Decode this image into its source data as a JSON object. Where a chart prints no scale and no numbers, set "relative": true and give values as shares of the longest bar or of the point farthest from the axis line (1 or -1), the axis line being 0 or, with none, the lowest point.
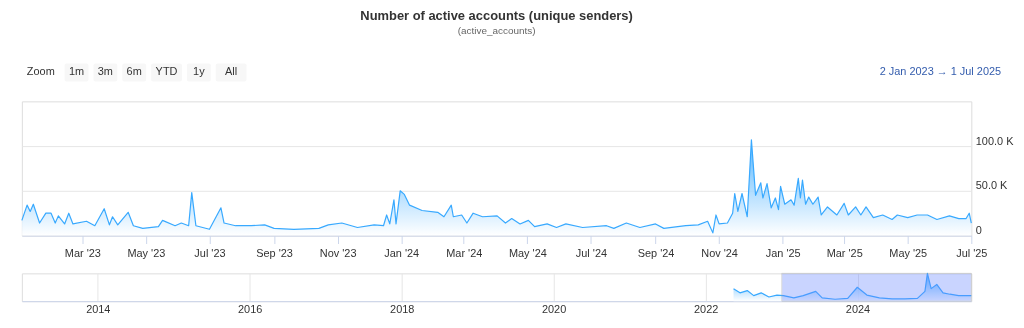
{
  "chart_data": [
    {
      "type": "area",
      "title": "Number of active accounts (unique senders)",
      "subtitle": "(active_accounts)",
      "annotations": [
        "Zoom",
        "1m",
        "3m",
        "6m",
        "YTD",
        "1y",
        "All",
        "2 Jan 2023 → 1 Jul 2025"
      ],
      "x": [
        "2023-01-02",
        "2023-01-07",
        "2023-01-10",
        "2023-01-13",
        "2023-01-19",
        "2023-01-25",
        "2023-01-30",
        "2023-02-03",
        "2023-02-06",
        "2023-02-12",
        "2023-02-16",
        "2023-02-20",
        "2023-03-05",
        "2023-03-13",
        "2023-03-22",
        "2023-03-27",
        "2023-03-30",
        "2023-04-04",
        "2023-04-14",
        "2023-04-19",
        "2023-04-28",
        "2023-05-13",
        "2023-05-17",
        "2023-05-29",
        "2023-06-04",
        "2023-06-11",
        "2023-06-14",
        "2023-06-18",
        "2023-07-01",
        "2023-07-12",
        "2023-07-15",
        "2023-07-26",
        "2023-08-10",
        "2023-08-23",
        "2023-09-01",
        "2023-09-20",
        "2023-10-14",
        "2023-10-23",
        "2023-11-05",
        "2023-11-20",
        "2023-12-06",
        "2023-12-15",
        "2023-12-18",
        "2023-12-21",
        "2023-12-25",
        "2023-12-27",
        "2023-12-31",
        "2024-01-04",
        "2024-01-09",
        "2024-01-21",
        "2024-02-05",
        "2024-02-11",
        "2024-02-18",
        "2024-02-20",
        "2024-02-28",
        "2024-03-04",
        "2024-03-10",
        "2024-03-19",
        "2024-04-02",
        "2024-04-10",
        "2024-04-16",
        "2024-04-24",
        "2024-05-02",
        "2024-05-08",
        "2024-05-20",
        "2024-05-29",
        "2024-06-07",
        "2024-06-23",
        "2024-07-16",
        "2024-07-23",
        "2024-08-04",
        "2024-08-17",
        "2024-09-01",
        "2024-09-09",
        "2024-09-30",
        "2024-10-12",
        "2024-10-21",
        "2024-10-26",
        "2024-10-29",
        "2024-11-01",
        "2024-11-09",
        "2024-11-14",
        "2024-11-16",
        "2024-11-19",
        "2024-11-23",
        "2024-11-28",
        "2024-12-02",
        "2024-12-06",
        "2024-12-11",
        "2024-12-13",
        "2024-12-17",
        "2024-12-21",
        "2024-12-25",
        "2024-12-28",
        "2024-12-30",
        "2025-01-03",
        "2025-01-09",
        "2025-01-12",
        "2025-01-16",
        "2025-01-18",
        "2025-01-20",
        "2025-01-23",
        "2025-01-26",
        "2025-01-30",
        "2025-02-04",
        "2025-02-07",
        "2025-02-13",
        "2025-02-22",
        "2025-03-01",
        "2025-03-05",
        "2025-03-12",
        "2025-03-17",
        "2025-03-22",
        "2025-03-29",
        "2025-04-07",
        "2025-04-16",
        "2025-04-21",
        "2025-05-01",
        "2025-05-10",
        "2025-05-20",
        "2025-05-29",
        "2025-06-10",
        "2025-06-19",
        "2025-06-26",
        "2025-06-29",
        "2025-07-01"
      ],
      "series": [
        {
          "color": "#38a9ff",
          "values": [
            17000,
            34000,
            27000,
            35000,
            14000,
            25000,
            25000,
            14000,
            22000,
            13000,
            25000,
            13000,
            16000,
            11000,
            30000,
            12000,
            21000,
            12000,
            26000,
            11000,
            8000,
            10000,
            17000,
            11000,
            14000,
            11000,
            48000,
            11000,
            7000,
            31000,
            14000,
            11000,
            11000,
            12000,
            8000,
            7000,
            8000,
            12000,
            14000,
            9000,
            12000,
            11000,
            23000,
            13000,
            40000,
            13000,
            50000,
            46000,
            34000,
            28000,
            26000,
            21000,
            34000,
            21000,
            23000,
            14000,
            25000,
            21000,
            22000,
            14000,
            19000,
            13000,
            17000,
            10000,
            13000,
            9000,
            13000,
            9000,
            11000,
            8000,
            14000,
            9000,
            13000,
            8000,
            11000,
            12000,
            16000,
            3000,
            23000,
            13000,
            14000,
            25000,
            47000,
            27000,
            47000,
            21000,
            107000,
            45000,
            59000,
            42000,
            58000,
            31000,
            42000,
            29000,
            55000,
            35000,
            40000,
            34000,
            64000,
            42000,
            62000,
            35000,
            43000,
            35000,
            43000,
            23000,
            32000,
            23000,
            36000,
            23000,
            32000,
            23000,
            32000,
            20000,
            23000,
            18000,
            23000,
            20000,
            23000,
            23000,
            18000,
            22000,
            19000,
            19000,
            25000,
            14000
          ]
        }
      ],
      "xlim": [
        "2023-01-02",
        "2025-07-01"
      ],
      "xticks": [
        {
          "value": "2023-03-01",
          "label": "Mar '23"
        },
        {
          "value": "2023-05-01",
          "label": "May '23"
        },
        {
          "value": "2023-07-01",
          "label": "Jul '23"
        },
        {
          "value": "2023-09-01",
          "label": "Sep '23"
        },
        {
          "value": "2023-11-01",
          "label": "Nov '23"
        },
        {
          "value": "2024-01-01",
          "label": "Jan '24"
        },
        {
          "value": "2024-03-01",
          "label": "Mar '24"
        },
        {
          "value": "2024-05-01",
          "label": "May '24"
        },
        {
          "value": "2024-07-01",
          "label": "Jul '24"
        },
        {
          "value": "2024-09-01",
          "label": "Sep '24"
        },
        {
          "value": "2024-11-01",
          "label": "Nov '24"
        },
        {
          "value": "2025-01-01",
          "label": "Jan '25"
        },
        {
          "value": "2025-03-01",
          "label": "Mar '25"
        },
        {
          "value": "2025-05-01",
          "label": "May '25"
        },
        {
          "value": "2025-07-01",
          "label": "Jul '25"
        }
      ],
      "ylim": [
        0,
        150000
      ],
      "yticks": [
        {
          "value": 0,
          "label": "0"
        },
        {
          "value": 50000,
          "label": "50.0 K"
        },
        {
          "value": 100000,
          "label": "100.0 K"
        }
      ],
      "grid": "y"
    },
    {
      "type": "area",
      "relative": true,
      "tick_labels": "x",
      "grid": "x",
      "x": [
        "2022-05-15",
        "2022-06-15",
        "2022-07-20",
        "2022-08-20",
        "2022-09-25",
        "2022-11-01",
        "2022-12-10",
        "2023-01-10",
        "2023-03-01",
        "2023-04-15",
        "2023-06-14",
        "2023-07-15",
        "2023-09-15",
        "2023-11-15",
        "2023-12-31",
        "2024-02-15",
        "2024-04-15",
        "2024-06-15",
        "2024-08-15",
        "2024-10-15",
        "2024-11-20",
        "2024-12-02",
        "2024-12-20",
        "2025-01-16",
        "2025-02-15",
        "2025-03-20",
        "2025-05-01",
        "2025-07-01"
      ],
      "series": [
        {
          "color": "#38a9ff",
          "values": [
            0.45,
            0.3,
            0.38,
            0.2,
            0.3,
            0.15,
            0.22,
            0.2,
            0.12,
            0.2,
            0.35,
            0.12,
            0.07,
            0.1,
            0.5,
            0.22,
            0.12,
            0.08,
            0.08,
            0.1,
            0.35,
            1,
            0.45,
            0.6,
            0.3,
            0.25,
            0.2,
            0.2
          ]
        }
      ],
      "xlim": [
        "2013-01-01",
        "2025-07-01"
      ],
      "xticks": [
        {
          "value": "2014-01-01",
          "label": "2014"
        },
        {
          "value": "2016-01-01",
          "label": "2016"
        },
        {
          "value": "2018-01-01",
          "label": "2018"
        },
        {
          "value": "2020-01-01",
          "label": "2020"
        },
        {
          "value": "2022-01-01",
          "label": "2022"
        },
        {
          "value": "2024-01-01",
          "label": "2024"
        }
      ],
      "bands": [
        {
          "axis": "x",
          "from": "2023-01-02",
          "to": "2025-07-01",
          "color": "#6685ff"
        }
      ]
    }
  ]
}
